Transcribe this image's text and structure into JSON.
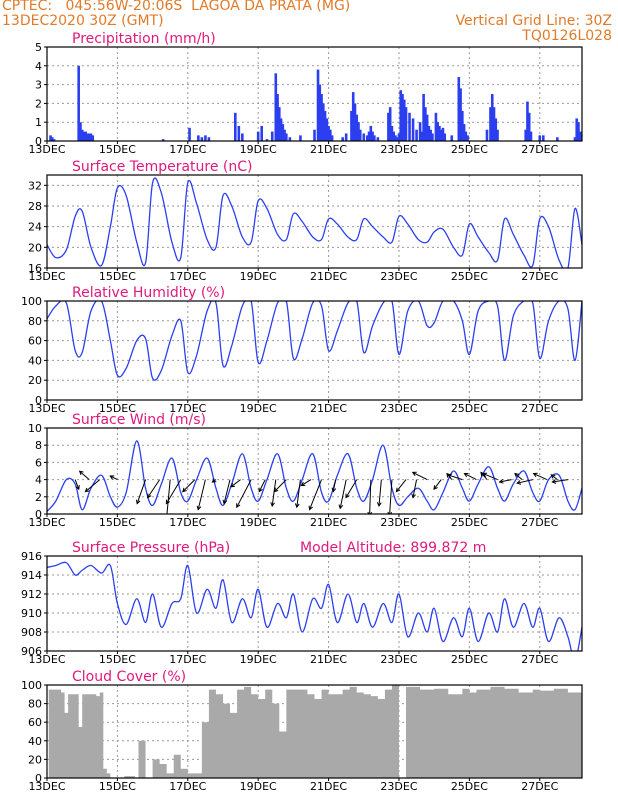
{
  "header": {
    "line1": "CPTEC:   045:56W-20:06S  LAGOA DA PRATA (MG)",
    "line2": "13DEC2020 30Z (GMT)",
    "grid_note": "Vertical Grid Line: 30Z",
    "code": "TQ0126L028"
  },
  "colors": {
    "title": "#e0197d",
    "header": "#e07b2a",
    "series": "#2b3ff0",
    "cloud": "#a9a9a9",
    "grid": "#9a9a9a"
  },
  "x_tick_labels": [
    "13DEC",
    "15DEC",
    "17DEC",
    "19DEC",
    "21DEC",
    "23DEC",
    "25DEC",
    "27DEC"
  ],
  "chart_data": [
    {
      "type": "bar",
      "title": "Precipitation (mm/h)",
      "xlim": [
        13,
        28.2
      ],
      "ylim": [
        0,
        5
      ],
      "y_ticks": [
        0,
        1,
        2,
        3,
        4,
        5
      ],
      "x": [
        13.1,
        13.15,
        13.2,
        13.9,
        13.95,
        14.0,
        14.05,
        14.1,
        14.15,
        14.2,
        14.25,
        14.3,
        16.3,
        17.05,
        17.3,
        17.4,
        17.5,
        17.6,
        18.35,
        18.45,
        18.55,
        19.0,
        19.1,
        19.25,
        19.4,
        19.5,
        19.55,
        19.6,
        19.65,
        19.7,
        19.75,
        19.8,
        19.9,
        20.2,
        20.6,
        20.7,
        20.75,
        20.8,
        20.85,
        20.9,
        20.95,
        21.0,
        21.05,
        21.1,
        21.4,
        21.5,
        21.65,
        21.7,
        21.75,
        21.8,
        21.85,
        21.9,
        22.0,
        22.1,
        22.15,
        22.2,
        22.25,
        22.3,
        22.4,
        22.7,
        22.75,
        22.8,
        22.85,
        22.9,
        22.95,
        23.0,
        23.05,
        23.1,
        23.15,
        23.2,
        23.3,
        23.4,
        23.5,
        23.6,
        23.65,
        23.7,
        23.75,
        23.8,
        23.85,
        23.9,
        23.95,
        24.05,
        24.1,
        24.15,
        24.2,
        24.25,
        24.3,
        24.5,
        24.7,
        24.75,
        24.8,
        24.85,
        24.9,
        24.95,
        25.5,
        25.6,
        25.65,
        25.7,
        25.75,
        25.8,
        26.6,
        26.65,
        26.7,
        26.75,
        27.0,
        27.1,
        27.5,
        28.0,
        28.05,
        28.1,
        28.15
      ],
      "values": [
        0.3,
        0.2,
        0.1,
        4.0,
        1.0,
        0.6,
        0.5,
        0.5,
        0.4,
        0.4,
        0.4,
        0.3,
        0.1,
        0.7,
        0.3,
        0.2,
        0.3,
        0.2,
        1.5,
        0.8,
        0.4,
        0.5,
        0.8,
        0.1,
        0.5,
        3.6,
        2.5,
        1.8,
        1.2,
        0.9,
        0.6,
        0.4,
        0.2,
        0.3,
        0.6,
        3.8,
        3.0,
        2.5,
        2.0,
        1.6,
        1.2,
        0.8,
        0.6,
        0.3,
        0.2,
        0.4,
        1.6,
        2.6,
        2.0,
        1.4,
        1.0,
        0.6,
        0.4,
        0.3,
        0.5,
        0.8,
        0.5,
        0.3,
        0.2,
        1.5,
        1.8,
        0.8,
        0.5,
        0.3,
        0.2,
        0.4,
        2.7,
        2.5,
        2.2,
        1.8,
        1.5,
        1.2,
        0.6,
        1.0,
        0.5,
        2.5,
        1.8,
        1.4,
        0.8,
        0.6,
        0.4,
        1.5,
        1.0,
        0.8,
        0.6,
        0.7,
        0.4,
        0.3,
        3.4,
        2.8,
        1.6,
        0.9,
        0.5,
        0.3,
        0.6,
        1.8,
        2.5,
        1.8,
        1.2,
        0.6,
        0.6,
        2.1,
        1.5,
        0.5,
        0.3,
        0.3,
        0.2,
        0.2,
        1.2,
        1.0,
        0.5
      ]
    },
    {
      "type": "line",
      "title": "Surface Temperature (nC)",
      "xlim": [
        13,
        28.2
      ],
      "ylim": [
        16,
        34
      ],
      "y_ticks": [
        16,
        20,
        24,
        28,
        32
      ],
      "x": [
        13.0,
        13.25,
        13.55,
        13.8,
        14.0,
        14.25,
        14.55,
        14.8,
        15.0,
        15.25,
        15.55,
        15.8,
        16.0,
        16.25,
        16.55,
        16.8,
        17.0,
        17.25,
        17.55,
        17.8,
        18.0,
        18.25,
        18.55,
        18.8,
        19.0,
        19.25,
        19.55,
        19.8,
        20.0,
        20.25,
        20.55,
        20.8,
        21.0,
        21.25,
        21.55,
        21.8,
        22.0,
        22.25,
        22.55,
        22.8,
        23.0,
        23.25,
        23.55,
        23.8,
        24.0,
        24.25,
        24.55,
        24.8,
        25.0,
        25.25,
        25.55,
        25.8,
        26.0,
        26.25,
        26.55,
        26.8,
        27.0,
        27.25,
        27.55,
        27.8,
        28.0,
        28.2
      ],
      "values": [
        20.5,
        18.0,
        19.5,
        26.0,
        27.0,
        20.0,
        16.5,
        24.0,
        31.5,
        30.0,
        21.0,
        17.0,
        32.5,
        30.5,
        21.0,
        18.0,
        32.5,
        28.5,
        21.5,
        20.0,
        30.0,
        28.0,
        22.0,
        21.0,
        29.0,
        27.5,
        22.5,
        21.5,
        26.5,
        25.0,
        22.0,
        21.5,
        25.5,
        24.5,
        22.0,
        21.5,
        25.5,
        24.0,
        22.0,
        21.0,
        26.0,
        24.5,
        21.5,
        21.0,
        23.0,
        23.5,
        20.0,
        18.5,
        24.5,
        22.0,
        19.0,
        17.5,
        25.5,
        22.5,
        18.5,
        16.5,
        25.5,
        24.0,
        17.5,
        16.0,
        27.5,
        20.5
      ]
    },
    {
      "type": "line",
      "title": "Relative Humidity (%)",
      "xlim": [
        13,
        28.2
      ],
      "ylim": [
        0,
        100
      ],
      "y_ticks": [
        0,
        20,
        40,
        60,
        80,
        100
      ],
      "x": [
        13.0,
        13.25,
        13.55,
        13.8,
        14.0,
        14.25,
        14.55,
        14.8,
        15.0,
        15.25,
        15.55,
        15.8,
        16.0,
        16.25,
        16.55,
        16.8,
        17.0,
        17.25,
        17.55,
        17.8,
        18.0,
        18.25,
        18.55,
        18.8,
        19.0,
        19.25,
        19.55,
        19.8,
        20.0,
        20.25,
        20.55,
        20.8,
        21.0,
        21.25,
        21.55,
        21.8,
        22.0,
        22.25,
        22.55,
        22.8,
        23.0,
        23.25,
        23.55,
        23.8,
        24.0,
        24.25,
        24.55,
        24.8,
        25.0,
        25.25,
        25.55,
        25.8,
        26.0,
        26.25,
        26.55,
        26.8,
        27.0,
        27.25,
        27.55,
        27.8,
        28.0,
        28.2
      ],
      "values": [
        82,
        95,
        98,
        50,
        48,
        90,
        100,
        60,
        25,
        32,
        60,
        62,
        22,
        30,
        65,
        80,
        28,
        45,
        90,
        98,
        35,
        55,
        95,
        100,
        38,
        60,
        98,
        100,
        42,
        62,
        98,
        95,
        50,
        70,
        98,
        100,
        48,
        75,
        98,
        100,
        46,
        90,
        100,
        75,
        78,
        100,
        100,
        80,
        46,
        90,
        100,
        95,
        40,
        85,
        100,
        98,
        42,
        80,
        100,
        92,
        40,
        100
      ]
    },
    {
      "type": "line",
      "title": "Surface Wind (m/s)",
      "xlim": [
        13,
        28.2
      ],
      "ylim": [
        0,
        10
      ],
      "y_ticks": [
        0,
        2,
        4,
        6,
        8,
        10
      ],
      "x": [
        13.0,
        13.25,
        13.55,
        13.8,
        14.0,
        14.25,
        14.55,
        14.8,
        15.0,
        15.25,
        15.55,
        15.8,
        16.0,
        16.25,
        16.55,
        16.8,
        17.0,
        17.25,
        17.55,
        17.8,
        18.0,
        18.25,
        18.55,
        18.8,
        19.0,
        19.25,
        19.55,
        19.8,
        20.0,
        20.25,
        20.55,
        20.8,
        21.0,
        21.25,
        21.55,
        21.8,
        22.0,
        22.25,
        22.55,
        22.8,
        23.0,
        23.25,
        23.55,
        23.8,
        24.0,
        24.25,
        24.55,
        24.8,
        25.0,
        25.25,
        25.55,
        25.8,
        26.0,
        26.25,
        26.55,
        26.8,
        27.0,
        27.25,
        27.55,
        27.8,
        28.0,
        28.2
      ],
      "values": [
        0.3,
        1.5,
        4.0,
        3.5,
        0.5,
        3.0,
        4.5,
        2.0,
        0.8,
        2.5,
        8.5,
        3.0,
        1.0,
        3.5,
        6.5,
        2.5,
        1.5,
        4.0,
        6.5,
        3.0,
        1.0,
        3.5,
        7.0,
        3.0,
        1.5,
        4.0,
        7.0,
        3.0,
        1.5,
        4.0,
        7.0,
        2.5,
        1.5,
        4.5,
        7.0,
        3.0,
        1.5,
        4.0,
        8.0,
        3.0,
        1.0,
        2.0,
        3.0,
        1.5,
        0.5,
        2.5,
        5.0,
        3.0,
        1.5,
        3.5,
        5.5,
        3.0,
        1.5,
        3.5,
        5.0,
        2.5,
        1.5,
        4.0,
        4.5,
        1.5,
        0.5,
        3.0
      ],
      "vector_x": [
        13.8,
        14.2,
        14.5,
        15.0,
        15.8,
        16.2,
        16.5,
        16.8,
        17.2,
        17.5,
        17.8,
        18.2,
        18.5,
        18.8,
        19.2,
        19.5,
        19.8,
        20.2,
        20.5,
        20.8,
        21.2,
        21.5,
        21.8,
        22.2,
        22.5,
        22.8,
        23.2,
        23.5,
        23.8,
        24.2,
        24.5,
        24.8,
        25.2,
        25.5,
        25.8,
        26.2,
        26.5,
        26.8,
        27.2,
        27.5,
        27.8
      ],
      "vector_u": [
        0.3,
        -0.8,
        -1.2,
        -0.6,
        -0.7,
        -1.0,
        -0.3,
        -1.2,
        -1.0,
        -0.6,
        -0.3,
        -0.5,
        -0.8,
        -1.2,
        -0.5,
        -0.3,
        -1.0,
        -0.3,
        -0.8,
        -1.0,
        -0.2,
        -0.5,
        -0.9,
        -0.1,
        -0.2,
        -0.2,
        -0.8,
        -0.3,
        -1.2,
        -0.6,
        -0.4,
        -1.2,
        -1.0,
        -0.5,
        -1.2,
        -1.0,
        -0.6,
        -1.3,
        -1.1,
        -0.5,
        -1.3
      ],
      "vector_v": [
        -0.8,
        0.7,
        -1.0,
        0.3,
        -2.0,
        -1.5,
        -3.2,
        -2.0,
        -1.0,
        -2.5,
        -0.2,
        -2.0,
        -0.6,
        -2.3,
        -1.0,
        -2.2,
        -1.0,
        -2.3,
        -0.5,
        -2.5,
        -1.0,
        -2.4,
        -1.5,
        -3.0,
        -2.2,
        -3.0,
        -1.0,
        -1.5,
        0.6,
        -0.8,
        0.5,
        0.4,
        0.5,
        0.6,
        0.5,
        -0.2,
        0.5,
        -0.3,
        0.5,
        0.4,
        -0.2
      ]
    },
    {
      "type": "line",
      "title": "Surface Pressure (hPa)",
      "annotation": "Model Altitude: 899.872 m",
      "xlim": [
        13,
        28.2
      ],
      "ylim": [
        906,
        916
      ],
      "y_ticks": [
        906,
        908,
        910,
        912,
        914,
        916
      ],
      "x": [
        13.0,
        13.25,
        13.55,
        13.8,
        14.0,
        14.25,
        14.55,
        14.8,
        15.0,
        15.25,
        15.55,
        15.8,
        16.0,
        16.25,
        16.55,
        16.8,
        17.0,
        17.25,
        17.55,
        17.8,
        18.0,
        18.25,
        18.55,
        18.8,
        19.0,
        19.25,
        19.55,
        19.8,
        20.0,
        20.25,
        20.55,
        20.8,
        21.0,
        21.25,
        21.55,
        21.8,
        22.0,
        22.25,
        22.55,
        22.8,
        23.0,
        23.25,
        23.55,
        23.8,
        24.0,
        24.25,
        24.55,
        24.8,
        25.0,
        25.25,
        25.55,
        25.8,
        26.0,
        26.25,
        26.55,
        26.8,
        27.0,
        27.25,
        27.55,
        27.8,
        28.0,
        28.2
      ],
      "values": [
        914.8,
        915.0,
        915.3,
        914.0,
        914.5,
        915.0,
        914.2,
        915.0,
        911.0,
        908.8,
        911.5,
        909.0,
        912.0,
        908.5,
        911.0,
        911.5,
        915.0,
        910.0,
        912.5,
        910.5,
        913.5,
        909.0,
        911.5,
        909.5,
        912.5,
        908.5,
        911.0,
        909.5,
        912.0,
        908.0,
        911.5,
        910.5,
        913.0,
        909.0,
        912.0,
        909.0,
        911.0,
        908.5,
        911.0,
        909.0,
        912.0,
        907.5,
        910.0,
        908.0,
        910.5,
        907.0,
        909.5,
        907.5,
        910.5,
        907.0,
        910.0,
        908.0,
        911.5,
        908.5,
        911.0,
        908.5,
        910.5,
        907.0,
        909.5,
        907.5,
        905.0,
        908.5
      ]
    },
    {
      "type": "area",
      "title": "Cloud Cover (%)",
      "xlim": [
        13,
        28.2
      ],
      "ylim": [
        0,
        100
      ],
      "y_ticks": [
        0,
        20,
        40,
        60,
        80,
        100
      ],
      "x": [
        13.0,
        13.05,
        13.4,
        13.5,
        13.6,
        13.8,
        13.9,
        14.0,
        14.4,
        14.5,
        14.6,
        14.7,
        14.8,
        15.0,
        15.2,
        15.5,
        15.6,
        15.8,
        16.0,
        16.2,
        16.4,
        16.6,
        16.8,
        17.0,
        17.2,
        17.4,
        17.6,
        17.8,
        18.0,
        18.2,
        18.4,
        18.6,
        18.8,
        19.0,
        19.2,
        19.4,
        19.6,
        19.8,
        20.0,
        20.4,
        20.6,
        20.8,
        21.0,
        21.4,
        21.6,
        21.8,
        22.0,
        22.2,
        22.4,
        22.6,
        22.8,
        23.0,
        23.2,
        23.6,
        24.0,
        24.4,
        24.8,
        25.0,
        25.2,
        25.6,
        26.0,
        26.4,
        26.8,
        27.0,
        27.4,
        27.8,
        28.2
      ],
      "values": [
        0,
        95,
        92,
        70,
        90,
        90,
        55,
        90,
        88,
        92,
        10,
        5,
        0,
        0,
        2,
        0,
        40,
        0,
        20,
        15,
        5,
        25,
        10,
        5,
        5,
        60,
        95,
        90,
        80,
        70,
        95,
        98,
        90,
        85,
        95,
        80,
        50,
        95,
        95,
        90,
        85,
        95,
        90,
        95,
        98,
        92,
        90,
        88,
        85,
        95,
        100,
        0,
        98,
        95,
        96,
        90,
        96,
        92,
        95,
        98,
        96,
        92,
        95,
        94,
        96,
        92,
        98
      ]
    }
  ]
}
